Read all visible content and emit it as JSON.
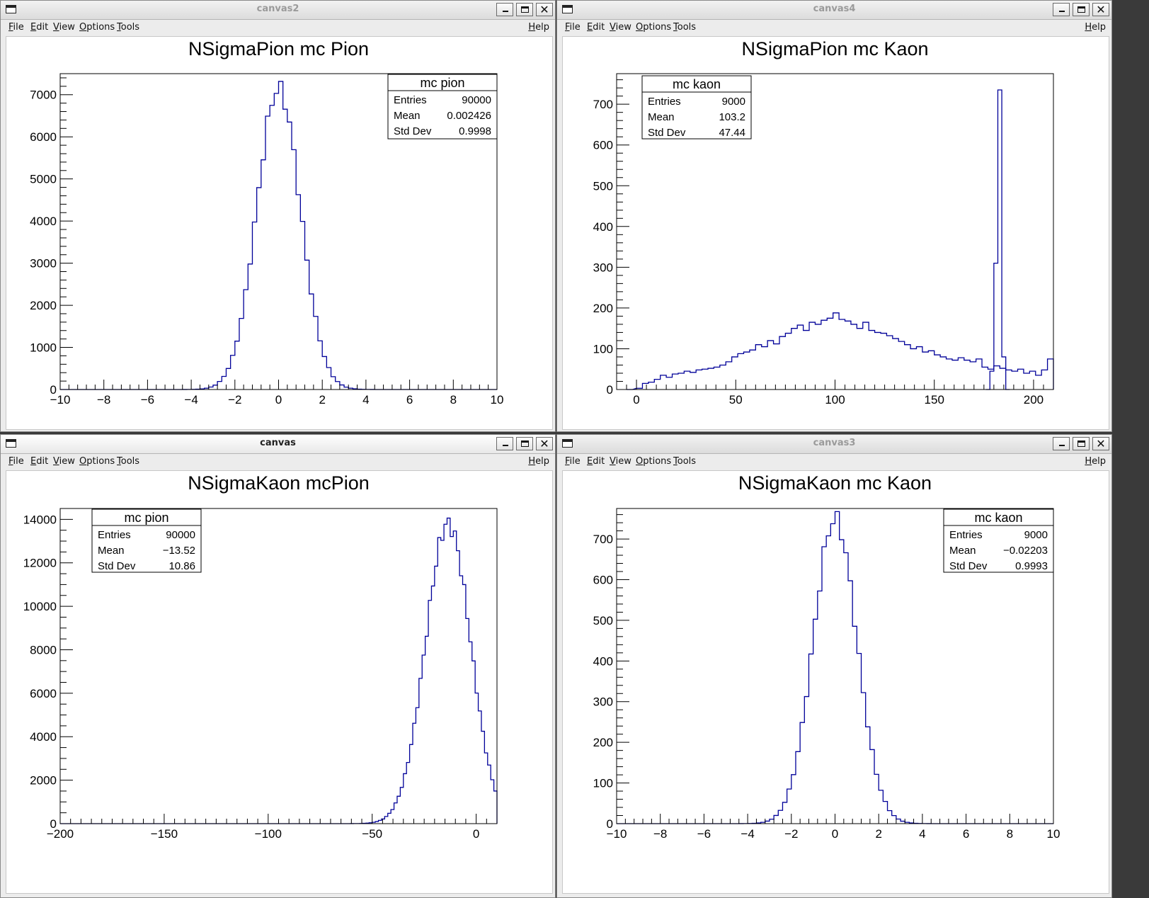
{
  "menu": {
    "file": "File",
    "edit": "Edit",
    "view": "View",
    "options": "Options",
    "tools": "Tools",
    "help": "Help"
  },
  "windows": [
    {
      "title": "canvas2",
      "chart": {
        "title": "NSigmaPion mc Pion",
        "stats": {
          "name": "mc pion",
          "rows": [
            [
              "Entries",
              "90000"
            ],
            [
              "Mean",
              "0.002426"
            ],
            [
              "Std Dev",
              "0.9998"
            ]
          ]
        },
        "xticks": [
          "−10",
          "−8",
          "−6",
          "−4",
          "−2",
          "0",
          "2",
          "4",
          "6",
          "8",
          "10"
        ],
        "yticks": [
          "0",
          "1000",
          "2000",
          "3000",
          "4000",
          "5000",
          "6000",
          "7000"
        ]
      }
    },
    {
      "title": "canvas4",
      "chart": {
        "title": "NSigmaPion mc Kaon",
        "stats": {
          "name": "mc kaon",
          "rows": [
            [
              "Entries",
              "9000"
            ],
            [
              "Mean",
              "103.2"
            ],
            [
              "Std Dev",
              "47.44"
            ]
          ]
        },
        "xticks": [
          "0",
          "50",
          "100",
          "150",
          "200"
        ],
        "yticks": [
          "0",
          "100",
          "200",
          "300",
          "400",
          "500",
          "600",
          "700"
        ]
      }
    },
    {
      "title": "canvas",
      "chart": {
        "title": "NSigmaKaon mcPion",
        "stats": {
          "name": "mc pion",
          "rows": [
            [
              "Entries",
              "90000"
            ],
            [
              "Mean",
              "−13.52"
            ],
            [
              "Std Dev",
              "10.86"
            ]
          ]
        },
        "xticks": [
          "−200",
          "−150",
          "−100",
          "−50",
          "0"
        ],
        "yticks": [
          "0",
          "2000",
          "4000",
          "6000",
          "8000",
          "10000",
          "12000",
          "14000"
        ]
      }
    },
    {
      "title": "canvas3",
      "chart": {
        "title": "NSigmaKaon mc Kaon",
        "stats": {
          "name": "mc kaon",
          "rows": [
            [
              "Entries",
              "9000"
            ],
            [
              "Mean",
              "−0.02203"
            ],
            [
              "Std Dev",
              "0.9993"
            ]
          ]
        },
        "xticks": [
          "−10",
          "−8",
          "−6",
          "−4",
          "−2",
          "0",
          "2",
          "4",
          "6",
          "8",
          "10"
        ],
        "yticks": [
          "0",
          "100",
          "200",
          "300",
          "400",
          "500",
          "600",
          "700"
        ]
      }
    }
  ],
  "chart_data": [
    {
      "type": "histogram",
      "title": "NSigmaPion mc Pion",
      "xlim": [
        -10,
        10
      ],
      "ylim": [
        0,
        7500
      ],
      "mean": 0,
      "sigma": 1,
      "peak": 7150,
      "series": [
        {
          "name": "mc pion"
        }
      ]
    },
    {
      "type": "histogram",
      "title": "NSigmaPion mc Kaon",
      "xlim": [
        -10,
        210
      ],
      "ylim": [
        0,
        775
      ],
      "series": [
        {
          "name": "mc kaon"
        }
      ],
      "bins": [
        [
          -5,
          0
        ],
        [
          0,
          3
        ],
        [
          3,
          15
        ],
        [
          6,
          18
        ],
        [
          9,
          25
        ],
        [
          12,
          35
        ],
        [
          15,
          30
        ],
        [
          18,
          38
        ],
        [
          21,
          40
        ],
        [
          24,
          45
        ],
        [
          27,
          42
        ],
        [
          30,
          48
        ],
        [
          33,
          50
        ],
        [
          36,
          52
        ],
        [
          39,
          55
        ],
        [
          42,
          60
        ],
        [
          45,
          68
        ],
        [
          48,
          80
        ],
        [
          51,
          88
        ],
        [
          54,
          92
        ],
        [
          57,
          97
        ],
        [
          60,
          110
        ],
        [
          63,
          105
        ],
        [
          66,
          120
        ],
        [
          69,
          112
        ],
        [
          72,
          130
        ],
        [
          75,
          138
        ],
        [
          78,
          150
        ],
        [
          81,
          158
        ],
        [
          84,
          145
        ],
        [
          87,
          165
        ],
        [
          90,
          160
        ],
        [
          93,
          170
        ],
        [
          96,
          175
        ],
        [
          99,
          188
        ],
        [
          102,
          172
        ],
        [
          105,
          168
        ],
        [
          108,
          160
        ],
        [
          111,
          150
        ],
        [
          114,
          165
        ],
        [
          117,
          145
        ],
        [
          120,
          140
        ],
        [
          123,
          138
        ],
        [
          126,
          132
        ],
        [
          129,
          125
        ],
        [
          132,
          118
        ],
        [
          135,
          110
        ],
        [
          138,
          100
        ],
        [
          141,
          105
        ],
        [
          144,
          92
        ],
        [
          147,
          95
        ],
        [
          150,
          85
        ],
        [
          153,
          80
        ],
        [
          156,
          75
        ],
        [
          159,
          72
        ],
        [
          162,
          78
        ],
        [
          165,
          72
        ],
        [
          168,
          68
        ],
        [
          171,
          75
        ],
        [
          174,
          55
        ],
        [
          177,
          50
        ],
        [
          180,
          58
        ],
        [
          183,
          52
        ],
        [
          186,
          48
        ],
        [
          189,
          45
        ],
        [
          192,
          50
        ],
        [
          195,
          40
        ],
        [
          198,
          45
        ],
        [
          201,
          35
        ],
        [
          204,
          48
        ],
        [
          207,
          75
        ]
      ],
      "spike": [
        [
          176,
          0
        ],
        [
          178,
          45
        ],
        [
          180,
          310
        ],
        [
          182,
          735
        ],
        [
          184,
          80
        ],
        [
          186,
          0
        ]
      ]
    },
    {
      "type": "histogram",
      "title": "NSigmaKaon mcPion",
      "xlim": [
        -200,
        10
      ],
      "ylim": [
        0,
        14500
      ],
      "mean": -13.52,
      "sigma": 10.86,
      "peak": 13800,
      "series": [
        {
          "name": "mc pion"
        }
      ]
    },
    {
      "type": "histogram",
      "title": "NSigmaKaon mc Kaon",
      "xlim": [
        -10,
        10
      ],
      "ylim": [
        0,
        775
      ],
      "mean": 0,
      "sigma": 1,
      "peak": 750,
      "series": [
        {
          "name": "mc kaon"
        }
      ]
    }
  ]
}
